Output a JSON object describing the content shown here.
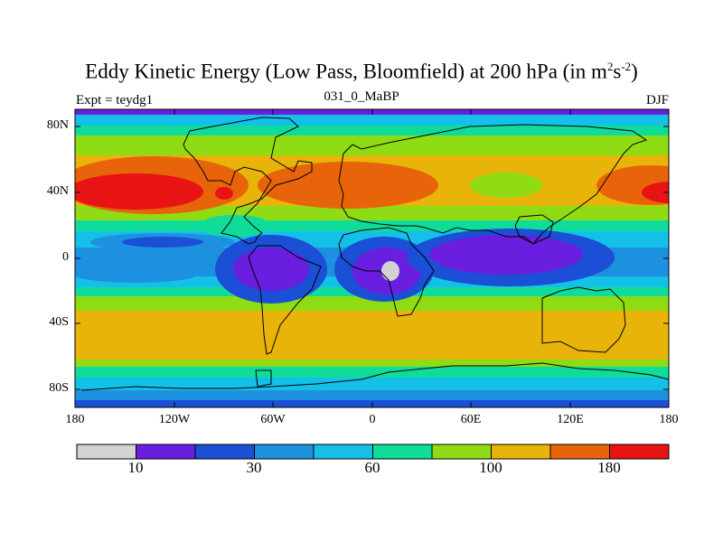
{
  "title": {
    "main": "Eddy Kinetic Energy (Low Pass, Bloomfield) at 200 hPa (in m",
    "sup1": "2",
    "mid": "s",
    "sup2": "-2",
    "end": ")"
  },
  "subtitle": {
    "left": "Expt = teydg1",
    "center": "031_0_MaBP",
    "right": "DJF"
  },
  "lat_labels": [
    "80N",
    "40N",
    "0",
    "40S",
    "80S"
  ],
  "lon_labels": [
    "180",
    "120W",
    "60W",
    "0",
    "60E",
    "120E",
    "180"
  ],
  "colorbar": {
    "colors": [
      "#d2d2d2",
      "#6a1ee0",
      "#1a4fd6",
      "#1e90e0",
      "#14c0e8",
      "#10dc9a",
      "#90dc14",
      "#e8b40a",
      "#e8640a",
      "#e81414"
    ],
    "labels": [
      "10",
      "30",
      "60",
      "100",
      "180"
    ]
  }
}
